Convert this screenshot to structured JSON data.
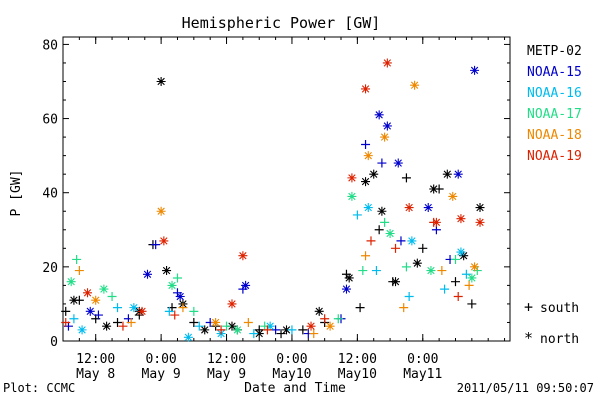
{
  "chart_data": {
    "type": "scatter",
    "title": "Hemispheric Power [GW]",
    "xlabel": "Date and Time",
    "ylabel": "P [GW]",
    "xlim": [
      "2011-05-08 06:00",
      "2011-05-11 16:00"
    ],
    "ylim": [
      0,
      82
    ],
    "yticks": [
      0,
      20,
      40,
      60,
      80
    ],
    "xticks": [
      {
        "t": "2011-05-08 12:00",
        "line1": "12:00",
        "line2": "May 8"
      },
      {
        "t": "2011-05-09 00:00",
        "line1": "0:00",
        "line2": "May 9"
      },
      {
        "t": "2011-05-09 12:00",
        "line1": "12:00",
        "line2": "May 9"
      },
      {
        "t": "2011-05-10 00:00",
        "line1": "0:00",
        "line2": "May10"
      },
      {
        "t": "2011-05-10 12:00",
        "line1": "12:00",
        "line2": "May10"
      },
      {
        "t": "2011-05-11 00:00",
        "line1": "0:00",
        "line2": "May11"
      }
    ],
    "grid": false,
    "legend_position": "right",
    "markers": {
      "south": "+",
      "north": "*"
    },
    "marker_legend": [
      {
        "symbol": "+",
        "label": "south"
      },
      {
        "symbol": "*",
        "label": "north"
      }
    ],
    "footer_left": "Plot: CCMC",
    "footer_right": "2011/05/11 09:50:07",
    "series": [
      {
        "name": "METP-02",
        "color": "#000000",
        "south": [
          [
            "2011-05-08 06:30",
            8
          ],
          [
            "2011-05-08 09:00",
            11
          ],
          [
            "2011-05-08 12:00",
            6
          ],
          [
            "2011-05-08 16:00",
            5
          ],
          [
            "2011-05-08 20:00",
            7
          ],
          [
            "2011-05-08 22:30",
            26
          ],
          [
            "2011-05-09 02:00",
            9
          ],
          [
            "2011-05-09 06:00",
            5
          ],
          [
            "2011-05-09 10:00",
            4
          ],
          [
            "2011-05-09 14:00",
            3
          ],
          [
            "2011-05-09 18:00",
            3
          ],
          [
            "2011-05-09 22:00",
            2
          ],
          [
            "2011-05-10 02:00",
            3
          ],
          [
            "2011-05-10 06:00",
            5
          ],
          [
            "2011-05-10 10:00",
            18
          ],
          [
            "2011-05-10 12:30",
            9
          ],
          [
            "2011-05-10 16:00",
            30
          ],
          [
            "2011-05-10 18:30",
            16
          ],
          [
            "2011-05-10 21:00",
            44
          ],
          [
            "2011-05-11 00:00",
            25
          ],
          [
            "2011-05-11 03:00",
            41
          ],
          [
            "2011-05-11 06:00",
            16
          ],
          [
            "2011-05-11 09:00",
            10
          ]
        ],
        "north": [
          [
            "2011-05-08 08:00",
            11
          ],
          [
            "2011-05-08 14:00",
            4
          ],
          [
            "2011-05-08 20:00",
            8
          ],
          [
            "2011-05-09 00:00",
            70
          ],
          [
            "2011-05-09 01:00",
            19
          ],
          [
            "2011-05-09 04:00",
            10
          ],
          [
            "2011-05-09 08:00",
            3
          ],
          [
            "2011-05-09 13:00",
            4
          ],
          [
            "2011-05-09 18:00",
            2
          ],
          [
            "2011-05-09 23:00",
            3
          ],
          [
            "2011-05-10 05:00",
            8
          ],
          [
            "2011-05-10 10:30",
            17
          ],
          [
            "2011-05-10 13:30",
            43
          ],
          [
            "2011-05-10 15:00",
            45
          ],
          [
            "2011-05-10 16:30",
            35
          ],
          [
            "2011-05-10 19:00",
            16
          ],
          [
            "2011-05-10 23:00",
            21
          ],
          [
            "2011-05-11 02:00",
            41
          ],
          [
            "2011-05-11 04:30",
            45
          ],
          [
            "2011-05-11 07:30",
            23
          ],
          [
            "2011-05-11 10:30",
            36
          ]
        ]
      },
      {
        "name": "NOAA-15",
        "color": "#0000cc",
        "south": [
          [
            "2011-05-08 07:00",
            4
          ],
          [
            "2011-05-08 12:30",
            7
          ],
          [
            "2011-05-08 18:00",
            6
          ],
          [
            "2011-05-08 23:00",
            26
          ],
          [
            "2011-05-09 03:00",
            13
          ],
          [
            "2011-05-09 09:00",
            5
          ],
          [
            "2011-05-09 15:00",
            14
          ],
          [
            "2011-05-09 21:00",
            3
          ],
          [
            "2011-05-10 03:00",
            2
          ],
          [
            "2011-05-10 09:00",
            6
          ],
          [
            "2011-05-10 13:30",
            53
          ],
          [
            "2011-05-10 16:30",
            48
          ],
          [
            "2011-05-10 20:00",
            27
          ],
          [
            "2011-05-11 02:30",
            30
          ],
          [
            "2011-05-11 05:00",
            22
          ]
        ],
        "north": [
          [
            "2011-05-08 11:00",
            8
          ],
          [
            "2011-05-08 21:30",
            18
          ],
          [
            "2011-05-09 03:30",
            12
          ],
          [
            "2011-05-09 15:30",
            15
          ],
          [
            "2011-05-10 10:00",
            14
          ],
          [
            "2011-05-10 16:00",
            61
          ],
          [
            "2011-05-10 17:30",
            58
          ],
          [
            "2011-05-10 19:30",
            48
          ],
          [
            "2011-05-11 01:00",
            36
          ],
          [
            "2011-05-11 06:30",
            45
          ],
          [
            "2011-05-11 09:30",
            73
          ]
        ]
      },
      {
        "name": "NOAA-16",
        "color": "#00bbee",
        "south": [
          [
            "2011-05-08 08:00",
            6
          ],
          [
            "2011-05-08 16:00",
            9
          ],
          [
            "2011-05-09 01:30",
            8
          ],
          [
            "2011-05-09 07:00",
            4
          ],
          [
            "2011-05-09 17:00",
            2
          ],
          [
            "2011-05-10 00:00",
            3
          ],
          [
            "2011-05-10 12:00",
            34
          ],
          [
            "2011-05-10 15:30",
            19
          ],
          [
            "2011-05-10 21:30",
            12
          ],
          [
            "2011-05-11 04:00",
            14
          ],
          [
            "2011-05-11 08:00",
            18
          ]
        ],
        "north": [
          [
            "2011-05-08 09:30",
            3
          ],
          [
            "2011-05-08 19:00",
            9
          ],
          [
            "2011-05-09 05:00",
            1
          ],
          [
            "2011-05-09 11:00",
            2
          ],
          [
            "2011-05-09 20:00",
            4
          ],
          [
            "2011-05-10 14:00",
            36
          ],
          [
            "2011-05-10 22:00",
            27
          ],
          [
            "2011-05-11 07:00",
            24
          ]
        ]
      },
      {
        "name": "NOAA-17",
        "color": "#22dd88",
        "south": [
          [
            "2011-05-08 08:30",
            22
          ],
          [
            "2011-05-08 15:00",
            12
          ],
          [
            "2011-05-09 03:00",
            17
          ],
          [
            "2011-05-09 06:00",
            8
          ],
          [
            "2011-05-09 12:00",
            4
          ],
          [
            "2011-05-09 19:00",
            4
          ],
          [
            "2011-05-10 08:30",
            6
          ],
          [
            "2011-05-10 13:00",
            19
          ],
          [
            "2011-05-10 17:00",
            32
          ],
          [
            "2011-05-10 21:00",
            20
          ],
          [
            "2011-05-11 06:00",
            22
          ],
          [
            "2011-05-11 10:00",
            19
          ]
        ],
        "north": [
          [
            "2011-05-08 07:30",
            16
          ],
          [
            "2011-05-08 13:30",
            14
          ],
          [
            "2011-05-09 02:00",
            15
          ],
          [
            "2011-05-09 14:00",
            3
          ],
          [
            "2011-05-10 11:00",
            39
          ],
          [
            "2011-05-10 18:00",
            29
          ],
          [
            "2011-05-11 01:30",
            19
          ],
          [
            "2011-05-11 09:00",
            17
          ]
        ]
      },
      {
        "name": "NOAA-18",
        "color": "#ee8800",
        "south": [
          [
            "2011-05-08 09:00",
            19
          ],
          [
            "2011-05-08 18:30",
            5
          ],
          [
            "2011-05-09 04:00",
            9
          ],
          [
            "2011-05-09 16:00",
            5
          ],
          [
            "2011-05-10 04:00",
            2
          ],
          [
            "2011-05-10 13:30",
            23
          ],
          [
            "2011-05-10 20:30",
            9
          ],
          [
            "2011-05-11 03:30",
            19
          ],
          [
            "2011-05-11 08:30",
            15
          ]
        ],
        "north": [
          [
            "2011-05-08 12:00",
            11
          ],
          [
            "2011-05-09 00:00",
            35
          ],
          [
            "2011-05-09 10:00",
            5
          ],
          [
            "2011-05-10 07:00",
            4
          ],
          [
            "2011-05-10 14:00",
            50
          ],
          [
            "2011-05-10 17:00",
            55
          ],
          [
            "2011-05-10 22:30",
            69
          ],
          [
            "2011-05-11 05:30",
            39
          ],
          [
            "2011-05-11 09:30",
            20
          ]
        ]
      },
      {
        "name": "NOAA-19",
        "color": "#dd2200",
        "south": [
          [
            "2011-05-08 06:30",
            5
          ],
          [
            "2011-05-08 17:00",
            4
          ],
          [
            "2011-05-09 02:30",
            7
          ],
          [
            "2011-05-09 11:00",
            3
          ],
          [
            "2011-05-09 19:30",
            3
          ],
          [
            "2011-05-10 06:00",
            6
          ],
          [
            "2011-05-10 14:30",
            27
          ],
          [
            "2011-05-10 19:00",
            25
          ],
          [
            "2011-05-11 02:00",
            32
          ],
          [
            "2011-05-11 06:30",
            12
          ]
        ],
        "north": [
          [
            "2011-05-08 10:30",
            13
          ],
          [
            "2011-05-08 20:30",
            8
          ],
          [
            "2011-05-09 00:30",
            27
          ],
          [
            "2011-05-09 13:00",
            10
          ],
          [
            "2011-05-09 15:00",
            23
          ],
          [
            "2011-05-10 03:30",
            4
          ],
          [
            "2011-05-10 11:00",
            44
          ],
          [
            "2011-05-10 13:30",
            68
          ],
          [
            "2011-05-10 17:30",
            75
          ],
          [
            "2011-05-10 21:30",
            36
          ],
          [
            "2011-05-11 02:30",
            32
          ],
          [
            "2011-05-11 07:00",
            33
          ],
          [
            "2011-05-11 10:30",
            32
          ]
        ]
      }
    ]
  }
}
